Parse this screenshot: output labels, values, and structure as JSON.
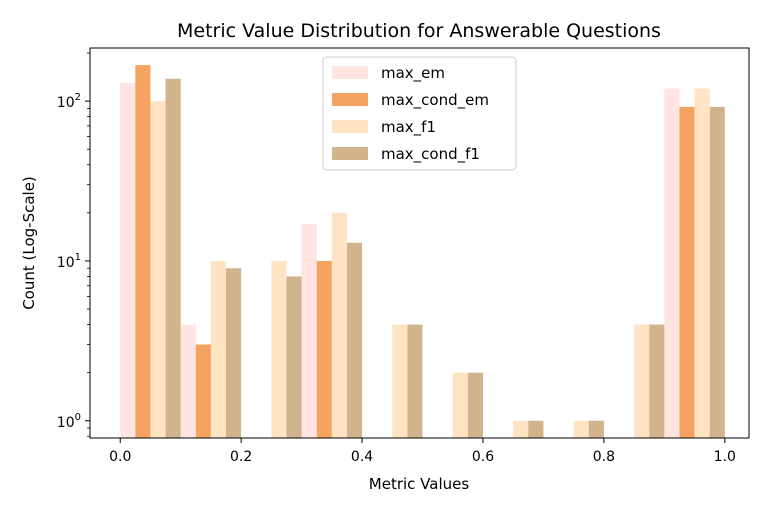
{
  "chart_data": {
    "type": "bar",
    "title": "Metric Value Distribution for Answerable Questions",
    "xlabel": "Metric Values",
    "ylabel": "Count (Log-Scale)",
    "yscale": "log",
    "xlim": [
      -0.05,
      1.04
    ],
    "ylim": [
      0.78,
      215
    ],
    "bin_edges": [
      0.0,
      0.1,
      0.2,
      0.3,
      0.4,
      0.5,
      0.6,
      0.7,
      0.8,
      0.9,
      1.0
    ],
    "x_ticks": [
      {
        "value": 0.0,
        "label": "0.0"
      },
      {
        "value": 0.2,
        "label": "0.2"
      },
      {
        "value": 0.4,
        "label": "0.4"
      },
      {
        "value": 0.6,
        "label": "0.6"
      },
      {
        "value": 0.8,
        "label": "0.8"
      },
      {
        "value": 1.0,
        "label": "1.0"
      }
    ],
    "y_ticks": [
      {
        "value": 1,
        "base": "10",
        "exp": "0"
      },
      {
        "value": 10,
        "base": "10",
        "exp": "1"
      },
      {
        "value": 100,
        "base": "10",
        "exp": "2"
      }
    ],
    "legend_position": "top-center",
    "series": [
      {
        "name": "max_em",
        "color": "#ffe4e1",
        "values": [
          130,
          4,
          0,
          17,
          0,
          0,
          0,
          0,
          0,
          120
        ]
      },
      {
        "name": "max_cond_em",
        "color": "#f4a460",
        "values": [
          168,
          3,
          0,
          10,
          0,
          0,
          0,
          0,
          0,
          92
        ]
      },
      {
        "name": "max_f1",
        "color": "#ffe4c4",
        "values": [
          100,
          10,
          10,
          20,
          4,
          2,
          1,
          1,
          4,
          120
        ]
      },
      {
        "name": "max_cond_f1",
        "color": "#d2b48c",
        "values": [
          138,
          9,
          8,
          13,
          4,
          2,
          1,
          1,
          4,
          92
        ]
      }
    ]
  }
}
